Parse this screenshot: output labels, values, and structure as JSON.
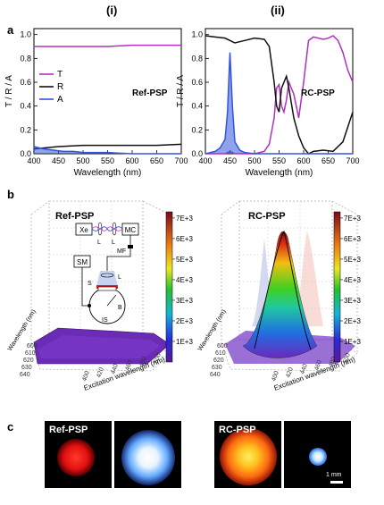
{
  "panels": {
    "a": {
      "letter": "a",
      "columns": [
        "(i)",
        "(ii)"
      ],
      "ylabel": "T / R / A",
      "xlabel": "Wavelength (nm)",
      "yticks": [
        "0.0",
        "0.2",
        "0.4",
        "0.6",
        "0.8",
        "1.0"
      ],
      "xticks": [
        "400",
        "450",
        "500",
        "550",
        "600",
        "650",
        "700"
      ],
      "legend": [
        "T",
        "R",
        "A"
      ],
      "left_label": "Ref-PSP",
      "right_label": "RC-PSP"
    },
    "b": {
      "letter": "b",
      "left_label": "Ref-PSP",
      "right_label": "RC-PSP",
      "colorbar_ticks": [
        "1E+3",
        "2E+3",
        "3E+3",
        "4E+3",
        "5E+3",
        "6E+3",
        "7E+3"
      ],
      "y3d_label": "Wavelength (nm)",
      "x3d_label": "Excitation wavelength (nm)",
      "y3d_ticks": [
        "600",
        "610",
        "620",
        "630",
        "640"
      ],
      "x3d_ticks": [
        "400",
        "420",
        "440",
        "460",
        "480",
        "500"
      ],
      "setup": {
        "xe": "Xe",
        "mc": "MC",
        "sm": "SM",
        "l1": "L",
        "l2": "L",
        "mf": "MF",
        "l3": "L",
        "s": "S",
        "b": "B",
        "is": "IS"
      }
    },
    "c": {
      "letter": "c",
      "left_label": "Ref-PSP",
      "right_label": "RC-PSP",
      "scale_bar": "1 mm"
    }
  },
  "colors": {
    "T": "#b030c0",
    "R": "#111111",
    "A": "#3355dd"
  },
  "chart_data": [
    {
      "type": "line",
      "title": "(i)",
      "xlabel": "Wavelength (nm)",
      "ylabel": "T / R / A",
      "xlim": [
        400,
        700
      ],
      "ylim": [
        0,
        1.05
      ],
      "legend_position": "middle-left",
      "series": [
        {
          "name": "T",
          "x": [
            400,
            450,
            500,
            550,
            600,
            650,
            700
          ],
          "values": [
            0.9,
            0.9,
            0.9,
            0.9,
            0.91,
            0.91,
            0.91
          ]
        },
        {
          "name": "R",
          "x": [
            400,
            450,
            500,
            550,
            600,
            650,
            700
          ],
          "values": [
            0.04,
            0.06,
            0.07,
            0.07,
            0.07,
            0.07,
            0.08
          ]
        },
        {
          "name": "A",
          "x": [
            400,
            420,
            440,
            460,
            480,
            500,
            550,
            600,
            650,
            700
          ],
          "values": [
            0.06,
            0.04,
            0.03,
            0.02,
            0.02,
            0.01,
            0.01,
            0.0,
            0.0,
            0.0
          ]
        }
      ]
    },
    {
      "type": "line",
      "title": "(ii)",
      "xlabel": "Wavelength (nm)",
      "ylabel": "T / R / A",
      "xlim": [
        400,
        700
      ],
      "ylim": [
        0,
        1.05
      ],
      "series": [
        {
          "name": "T",
          "x": [
            400,
            420,
            440,
            450,
            460,
            480,
            500,
            520,
            530,
            540,
            545,
            550,
            555,
            560,
            565,
            570,
            580,
            590,
            600,
            610,
            620,
            640,
            650,
            660,
            670,
            680,
            690,
            700
          ],
          "values": [
            0.0,
            0.0,
            0.0,
            0.02,
            0.0,
            0.0,
            0.0,
            0.02,
            0.08,
            0.3,
            0.55,
            0.58,
            0.4,
            0.35,
            0.45,
            0.6,
            0.5,
            0.3,
            0.6,
            0.95,
            0.98,
            0.96,
            0.97,
            0.99,
            0.95,
            0.85,
            0.7,
            0.6
          ]
        },
        {
          "name": "R",
          "x": [
            400,
            420,
            440,
            450,
            455,
            460,
            480,
            500,
            520,
            530,
            540,
            545,
            550,
            555,
            560,
            565,
            570,
            580,
            590,
            600,
            610,
            620,
            640,
            660,
            680,
            700
          ],
          "values": [
            0.99,
            0.98,
            0.97,
            0.95,
            0.94,
            0.93,
            0.95,
            0.97,
            0.96,
            0.9,
            0.6,
            0.4,
            0.35,
            0.55,
            0.6,
            0.65,
            0.55,
            0.3,
            0.15,
            0.05,
            0.0,
            0.02,
            0.03,
            0.02,
            0.1,
            0.35
          ]
        },
        {
          "name": "A",
          "x": [
            400,
            420,
            430,
            440,
            445,
            450,
            455,
            460,
            470,
            480,
            500,
            700
          ],
          "values": [
            0.0,
            0.02,
            0.05,
            0.12,
            0.35,
            0.85,
            0.4,
            0.1,
            0.03,
            0.01,
            0.0,
            0.0
          ]
        }
      ]
    }
  ]
}
